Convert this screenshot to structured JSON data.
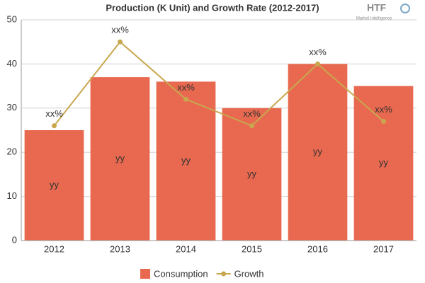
{
  "chart_data": {
    "type": "bar",
    "title": "Production (K Unit) and Growth Rate (2012-2017)",
    "logo": {
      "mark": "HTF",
      "text": "Market Intelligence"
    },
    "categories": [
      "2012",
      "2013",
      "2014",
      "2015",
      "2016",
      "2017"
    ],
    "series": [
      {
        "name": "Consumption",
        "type": "bar",
        "color": "#e8694f",
        "values": [
          25,
          37,
          36,
          30,
          40,
          35
        ],
        "value_labels": [
          "yy",
          "yy",
          "yy",
          "yy",
          "yy",
          "yy"
        ]
      },
      {
        "name": "Growth",
        "type": "line",
        "color": "#c9a74f",
        "values": [
          26,
          45,
          32,
          26,
          40,
          27
        ],
        "value_labels": [
          "xx%",
          "xx%",
          "xx%",
          "xx%",
          "xx%",
          "xx%"
        ]
      }
    ],
    "ylim": [
      0,
      50
    ],
    "yticks": [
      0,
      10,
      20,
      30,
      40,
      50
    ],
    "grid": true
  }
}
